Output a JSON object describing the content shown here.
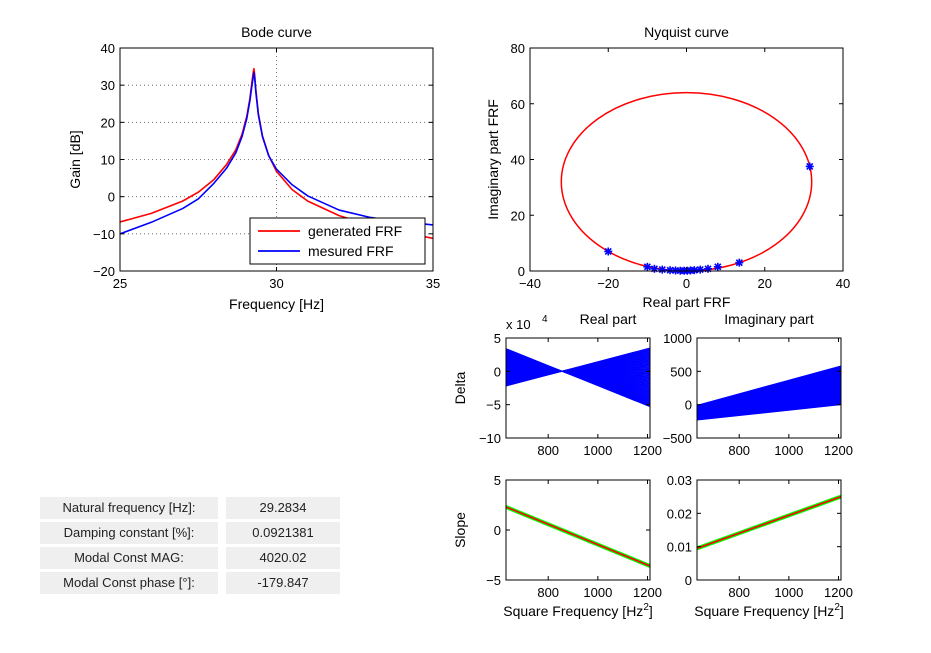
{
  "chart_data": [
    {
      "id": "bode",
      "type": "line",
      "title": "Bode curve",
      "xlabel": "Frequency  [Hz]",
      "ylabel": "Gain  [dB]",
      "xlim": [
        25,
        35
      ],
      "ylim": [
        -20,
        40
      ],
      "xticks": [
        25,
        30,
        35
      ],
      "yticks": [
        -20,
        -10,
        0,
        10,
        20,
        30,
        40
      ],
      "xticklabels": [
        "25",
        "30",
        "35"
      ],
      "yticklabels": [
        "−20",
        "−10",
        "0",
        "10",
        "20",
        "30",
        "40"
      ],
      "grid": true,
      "legend": "bottom-right",
      "series": [
        {
          "name": "generated FRF",
          "color": "#ff0000",
          "x": [
            25,
            26,
            27,
            27.5,
            28,
            28.4,
            28.7,
            28.9,
            29.05,
            29.15,
            29.22,
            29.26,
            29.28,
            29.3,
            29.34,
            29.42,
            29.55,
            29.75,
            30,
            30.5,
            31,
            32,
            33,
            34,
            35
          ],
          "y": [
            -6.8,
            -4.5,
            -1.2,
            1.2,
            4.6,
            8.6,
            12.6,
            16.8,
            21.6,
            26.4,
            31.2,
            33.6,
            34.4,
            33,
            28.8,
            22.4,
            16.4,
            11.1,
            6.8,
            1.9,
            -1.2,
            -5.1,
            -7.7,
            -9.6,
            -11.2
          ]
        },
        {
          "name": "mesured FRF",
          "color": "#0000ff",
          "x": [
            25,
            26,
            27,
            27.5,
            28,
            28.4,
            28.7,
            28.9,
            29.05,
            29.15,
            29.22,
            29.26,
            29.28,
            29.3,
            29.34,
            29.42,
            29.55,
            29.75,
            30,
            30.5,
            31,
            32,
            33,
            34,
            35
          ],
          "y": [
            -10,
            -6.9,
            -3.2,
            -0.6,
            3.6,
            7.6,
            11.8,
            16.2,
            21,
            25.8,
            30.2,
            32.4,
            33.4,
            32.2,
            28.2,
            22,
            16.2,
            11,
            7.4,
            3.2,
            0.2,
            -3.6,
            -5.6,
            -6.7,
            -7.6
          ]
        }
      ]
    },
    {
      "id": "nyquist",
      "type": "line",
      "title": "Nyquist curve",
      "xlabel": "Real part FRF",
      "ylabel": "Imaginary part FRF",
      "xlim": [
        -40,
        40
      ],
      "ylim": [
        0,
        80
      ],
      "xticks": [
        -40,
        -20,
        0,
        20,
        40
      ],
      "yticks": [
        0,
        20,
        40,
        60,
        80
      ],
      "xticklabels": [
        "−40",
        "−20",
        "0",
        "20",
        "40"
      ],
      "yticklabels": [
        "0",
        "20",
        "40",
        "60",
        "80"
      ],
      "circle": {
        "cx": 0,
        "cy": 32,
        "r": 32,
        "color": "#ff0000"
      },
      "points": {
        "color": "#0000ff",
        "x": [
          31.5,
          13.5,
          8,
          5.5,
          3.5,
          2,
          1,
          0.2,
          -0.6,
          -1.6,
          -2.8,
          -4.2,
          -6.2,
          -8.2,
          -10,
          -20
        ],
        "y": [
          37.5,
          3,
          1.5,
          0.8,
          0.5,
          0.3,
          0.2,
          0.1,
          0.1,
          0.1,
          0.2,
          0.3,
          0.5,
          0.8,
          1.5,
          7
        ]
      }
    },
    {
      "id": "delta-real",
      "type": "line",
      "title": "Real part",
      "exponent_label": "x 10",
      "exponent_sup": "4",
      "ylabel": "Delta",
      "xlim": [
        630,
        1210
      ],
      "ylim": [
        -10,
        5
      ],
      "xticks": [
        800,
        1000,
        1200
      ],
      "yticks": [
        -10,
        -5,
        0,
        5
      ],
      "xticklabels": [
        "800",
        "1000",
        "1200"
      ],
      "yticklabels": [
        "−10",
        "−5",
        "0",
        "5"
      ],
      "fan": {
        "pivot_x": 860,
        "pivot_y": 0,
        "left_top": 3.4,
        "left_bottom": -2.2,
        "right_top": 3.5,
        "right_bottom": -5.3,
        "color": "#0000ff"
      }
    },
    {
      "id": "delta-imag",
      "type": "line",
      "title": "Imaginary part",
      "xlim": [
        630,
        1210
      ],
      "ylim": [
        -500,
        1000
      ],
      "xticks": [
        800,
        1000,
        1200
      ],
      "yticks": [
        -500,
        0,
        500,
        1000
      ],
      "xticklabels": [
        "800",
        "1000",
        "1200"
      ],
      "yticklabels": [
        "−500",
        "0",
        "500",
        "1000"
      ],
      "fan": {
        "left_top": -10,
        "left_bottom": -230,
        "right_top": 580,
        "right_bottom": 0,
        "color": "#0000ff"
      }
    },
    {
      "id": "slope-real",
      "type": "line",
      "ylabel": "Slope",
      "xlabel": "Square Frequency  [Hz",
      "xlabel_sup": "2",
      "xlabel_suffix": "]",
      "xlim": [
        630,
        1210
      ],
      "ylim": [
        -5,
        5
      ],
      "xticks": [
        800,
        1000,
        1200
      ],
      "yticks": [
        -5,
        0,
        5
      ],
      "xticklabels": [
        "800",
        "1000",
        "1200"
      ],
      "yticklabels": [
        "−5",
        "0",
        "5"
      ],
      "series": [
        {
          "name": "",
          "color": "#00ff00",
          "x": [
            630,
            1210
          ],
          "y": [
            2.3,
            -3.6
          ]
        },
        {
          "name": "",
          "color": "#ff0000",
          "x": [
            630,
            1210
          ],
          "y": [
            2.3,
            -3.6
          ]
        }
      ]
    },
    {
      "id": "slope-imag",
      "type": "line",
      "xlabel": "Square Frequency  [Hz",
      "xlabel_sup": "2",
      "xlabel_suffix": "]",
      "xlim": [
        630,
        1210
      ],
      "ylim": [
        0,
        0.03
      ],
      "xticks": [
        800,
        1000,
        1200
      ],
      "yticks": [
        0,
        0.01,
        0.02,
        0.03
      ],
      "xticklabels": [
        "800",
        "1000",
        "1200"
      ],
      "yticklabels": [
        "0",
        "0.01",
        "0.02",
        "0.03"
      ],
      "series": [
        {
          "name": "",
          "color": "#00ff00",
          "x": [
            630,
            1210
          ],
          "y": [
            0.0095,
            0.025
          ]
        },
        {
          "name": "",
          "color": "#ff0000",
          "x": [
            630,
            1210
          ],
          "y": [
            0.0095,
            0.025
          ]
        }
      ]
    }
  ],
  "info_panel": {
    "rows": [
      {
        "label": "Natural frequency [Hz]:",
        "value": "29.2834"
      },
      {
        "label": "Damping constant [%]:",
        "value": "0.0921381"
      },
      {
        "label": "Modal Const MAG:",
        "value": "4020.02"
      },
      {
        "label": "Modal Const phase [°]:",
        "value": "-179.847"
      }
    ]
  }
}
